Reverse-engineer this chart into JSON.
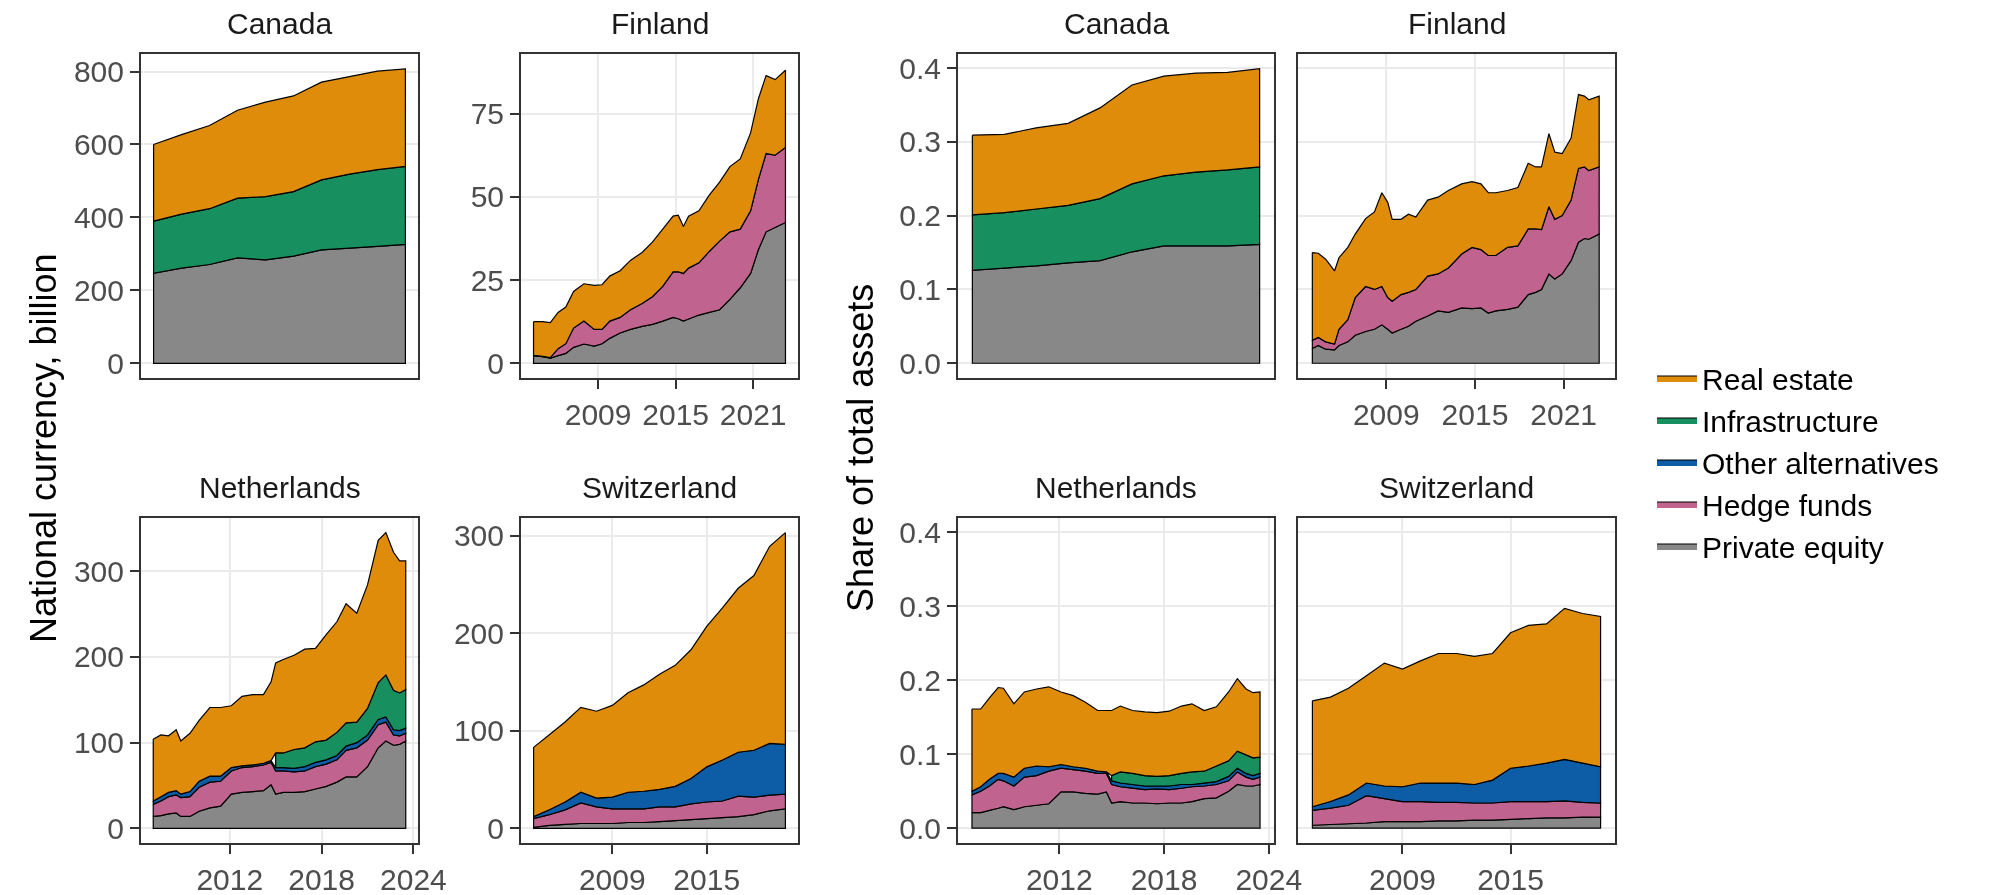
{
  "chart_data": [
    {
      "type": "area",
      "stacked": true,
      "legend": "right",
      "title": "Canada",
      "ylabel": "National currency, billion",
      "categories": [
        null,
        null,
        null,
        null,
        null,
        null,
        null,
        null,
        null,
        null
      ],
      "ylim": [
        -40,
        848
      ],
      "yticks": [
        0,
        200,
        400,
        600,
        800
      ],
      "grid": "y",
      "tick_labels": "y",
      "series": [
        {
          "name": "Private equity",
          "color": "#888888",
          "values": [
            247,
            261,
            271,
            289,
            284,
            294,
            311,
            316,
            321,
            326
          ]
        },
        {
          "name": "Infrastructure",
          "color": "#178f5e",
          "values": [
            143,
            148,
            153,
            164,
            173,
            177,
            192,
            203,
            210,
            214
          ]
        },
        {
          "name": "Real estate",
          "color": "#df8c0a",
          "values": [
            210,
            218,
            228,
            241,
            259,
            262,
            268,
            267,
            270,
            267
          ]
        }
      ]
    },
    {
      "type": "area",
      "stacked": true,
      "legend": "right",
      "title": "Finland",
      "x": [
        2004.0,
        2004.7,
        2005.3,
        2005.9,
        2006.5,
        2007.1,
        2007.9,
        2008.7,
        2009.3,
        2009.9,
        2010.7,
        2011.5,
        2012.4,
        2013.2,
        2014.0,
        2014.8,
        2015.2,
        2015.6,
        2016.0,
        2016.8,
        2017.6,
        2018.4,
        2019.2,
        2020.0,
        2020.8,
        2021.4,
        2022.0,
        2022.7,
        2023.5
      ],
      "xlim": [
        2003.03,
        2024.47
      ],
      "xticks": [
        2009,
        2015,
        2021
      ],
      "ylim": [
        -4.4,
        92.9
      ],
      "yticks": [
        0,
        25,
        50,
        75
      ],
      "grid": true,
      "series": [
        {
          "name": "Private equity",
          "color": "#888888",
          "values": [
            2.3,
            2.0,
            1.6,
            2.3,
            3.0,
            4.8,
            5.8,
            5.2,
            5.9,
            7.5,
            9.1,
            10.2,
            11.1,
            11.7,
            12.7,
            13.8,
            13.4,
            12.7,
            13.3,
            14.5,
            15.3,
            16.1,
            19.2,
            22.7,
            27.0,
            34.1,
            39.5,
            40.8,
            42.3
          ]
        },
        {
          "name": "Hedge funds",
          "color": "#c1638f",
          "values": [
            0.1,
            0.1,
            0.1,
            2.1,
            2.9,
            5.8,
            6.9,
            5.0,
            4.3,
            5.2,
            4.7,
            5.9,
            6.9,
            8.3,
            10.4,
            13.7,
            14.1,
            14.3,
            15.3,
            15.7,
            18.3,
            20.6,
            20.3,
            17.6,
            18.8,
            21.1,
            23.5,
            21.7,
            22.5
          ]
        },
        {
          "name": "Real estate",
          "color": "#df8c0a",
          "values": [
            10.1,
            10.4,
            10.5,
            10.9,
            11.0,
            11.0,
            11.2,
            13.2,
            13.4,
            13.5,
            14.0,
            14.8,
            15.3,
            16.4,
            17.2,
            16.7,
            17.0,
            14.1,
            15.6,
            15.6,
            16.9,
            17.7,
            19.6,
            21.1,
            23.4,
            24.2,
            23.4,
            22.7,
            23.2
          ]
        }
      ]
    },
    {
      "type": "area",
      "stacked": true,
      "title": "Netherlands",
      "legend": "right",
      "x": [
        2007.0,
        2007.5,
        2008.0,
        2008.5,
        2008.8,
        2009.4,
        2010.0,
        2010.7,
        2011.4,
        2012.1,
        2012.8,
        2013.5,
        2014.2,
        2014.7,
        2015.0,
        2015.5,
        2016.2,
        2016.9,
        2017.6,
        2018.3,
        2019.0,
        2019.6,
        2020.3,
        2021.0,
        2021.7,
        2022.2,
        2022.7,
        2023.1,
        2023.5
      ],
      "xlim": [
        2006.2,
        2024.3
      ],
      "xticks": [
        2012,
        2018,
        2024
      ],
      "ylim": [
        -17,
        362
      ],
      "yticks": [
        0,
        100,
        200,
        300
      ],
      "grid": true,
      "series": [
        {
          "name": "Private equity",
          "color": "#888888",
          "values": [
            14,
            15,
            17,
            18,
            14,
            14,
            20,
            24,
            26,
            40,
            42,
            43,
            44,
            51,
            40,
            42,
            42,
            43,
            46,
            49,
            54,
            60,
            60,
            72,
            94,
            102,
            97,
            98,
            102
          ]
        },
        {
          "name": "Hedge funds",
          "color": "#c1638f",
          "values": [
            14,
            17,
            20,
            21,
            22,
            23,
            28,
            30,
            29,
            27,
            29,
            29,
            30,
            26,
            27,
            25,
            24,
            24,
            26,
            26,
            26,
            31,
            34,
            31,
            27,
            22,
            12,
            10,
            9
          ]
        },
        {
          "name": "Other alternatives",
          "color": "#0c5da5",
          "values": [
            4,
            5,
            5,
            5,
            4,
            6,
            7,
            7,
            6,
            4,
            2,
            2,
            2,
            2,
            4,
            4,
            4,
            5,
            5,
            5,
            5,
            5,
            6,
            6,
            6,
            6,
            6,
            6,
            6
          ]
        },
        {
          "name": "Infrastructure",
          "color": "#178f5e",
          "values": [
            null,
            null,
            null,
            null,
            null,
            null,
            null,
            null,
            null,
            null,
            null,
            null,
            null,
            null,
            17,
            17,
            22,
            22,
            24,
            23,
            27,
            27,
            24,
            31,
            43,
            49,
            46,
            44,
            45
          ]
        },
        {
          "name": "Real estate",
          "color": "#df8c0a",
          "values": [
            72,
            72,
            66,
            71,
            62,
            68,
            71,
            80,
            80,
            72,
            81,
            82,
            80,
            92,
            105,
            109,
            110,
            115,
            109,
            123,
            129,
            139,
            127,
            144,
            166,
            166,
            161,
            154,
            150
          ]
        }
      ]
    },
    {
      "type": "area",
      "stacked": true,
      "legend": "right",
      "title": "Switzerland",
      "x": [
        2004,
        2005,
        2006,
        2007,
        2008,
        2009,
        2010,
        2011,
        2012,
        2013,
        2014,
        2015,
        2016,
        2017,
        2018,
        2019,
        2020
      ],
      "xlim": [
        2003.2,
        2020.8
      ],
      "xticks": [
        2009,
        2015
      ],
      "ylim": [
        -15,
        318
      ],
      "yticks": [
        0,
        100,
        200,
        300
      ],
      "grid": true,
      "series": [
        {
          "name": "Private equity",
          "color": "#888888",
          "values": [
            1,
            3,
            4,
            5,
            5,
            5,
            6,
            6,
            7,
            8,
            9,
            10,
            11,
            12,
            14,
            18,
            20
          ]
        },
        {
          "name": "Hedge funds",
          "color": "#c1638f",
          "values": [
            9,
            11,
            15,
            21,
            17,
            15,
            14,
            14,
            15,
            14,
            16,
            17,
            17,
            21,
            18,
            16,
            15
          ]
        },
        {
          "name": "Other alternatives",
          "color": "#0c5da5",
          "values": [
            2,
            5,
            8,
            11,
            9,
            12,
            17,
            18,
            18,
            21,
            26,
            36,
            42,
            45,
            48,
            53,
            51
          ]
        },
        {
          "name": "Real estate",
          "color": "#df8c0a",
          "values": [
            71,
            77,
            82,
            87,
            89,
            94,
            102,
            109,
            118,
            124,
            132,
            144,
            156,
            168,
            179,
            202,
            217
          ]
        }
      ]
    },
    {
      "type": "area",
      "stacked": true,
      "legend": "right",
      "title": "Canada",
      "ylabel": "Share of total assets",
      "categories": [
        null,
        null,
        null,
        null,
        null,
        null,
        null,
        null,
        null,
        null
      ],
      "ylim": [
        -0.02,
        0.419
      ],
      "yticks": [
        {
          "value": 0,
          "label": "0.0"
        },
        {
          "value": 0.1,
          "label": "0.1"
        },
        {
          "value": 0.2,
          "label": "0.2"
        },
        {
          "value": 0.3,
          "label": "0.3"
        },
        {
          "value": 0.4,
          "label": "0.4"
        }
      ],
      "grid": "y",
      "tick_labels": "y",
      "series": [
        {
          "name": "Private equity",
          "color": "#888888",
          "values": [
            0.126,
            0.129,
            0.132,
            0.136,
            0.139,
            0.151,
            0.159,
            0.159,
            0.159,
            0.161
          ]
        },
        {
          "name": "Infrastructure",
          "color": "#178f5e",
          "values": [
            0.075,
            0.075,
            0.077,
            0.078,
            0.084,
            0.092,
            0.095,
            0.1,
            0.103,
            0.105
          ]
        },
        {
          "name": "Real estate",
          "color": "#df8c0a",
          "values": [
            0.108,
            0.106,
            0.11,
            0.111,
            0.123,
            0.134,
            0.135,
            0.134,
            0.132,
            0.133
          ]
        }
      ]
    },
    {
      "type": "area",
      "stacked": true,
      "legend": "right",
      "title": "Finland",
      "x": [
        2004.0,
        2004.4,
        2004.9,
        2005.5,
        2005.8,
        2006.4,
        2006.9,
        2007.6,
        2008.2,
        2008.7,
        2009.1,
        2009.4,
        2010.0,
        2010.5,
        2011.0,
        2011.8,
        2012.5,
        2013.2,
        2014.1,
        2014.8,
        2015.4,
        2015.9,
        2016.4,
        2017.2,
        2017.9,
        2018.6,
        2019.1,
        2019.5,
        2020.0,
        2020.4,
        2020.9,
        2021.5,
        2022.0,
        2022.4,
        2022.7,
        2023.4
      ],
      "xlim": [
        2003.03,
        2024.47
      ],
      "xticks": [
        2009,
        2015,
        2021
      ],
      "ylim": [
        -0.02,
        0.419
      ],
      "yticks": [
        {
          "value": 0,
          "label": "0.0"
        },
        {
          "value": 0.1,
          "label": "0.1"
        },
        {
          "value": 0.2,
          "label": "0.2"
        },
        {
          "value": 0.3,
          "label": "0.3"
        },
        {
          "value": 0.4,
          "label": "0.4"
        }
      ],
      "grid": true,
      "tick_labels": "x",
      "series": [
        {
          "name": "Private equity",
          "color": "#888888",
          "values": [
            0.02,
            0.024,
            0.019,
            0.018,
            0.024,
            0.029,
            0.038,
            0.043,
            0.046,
            0.052,
            0.046,
            0.041,
            0.046,
            0.05,
            0.057,
            0.064,
            0.071,
            0.069,
            0.075,
            0.074,
            0.075,
            0.068,
            0.071,
            0.073,
            0.076,
            0.093,
            0.096,
            0.1,
            0.121,
            0.114,
            0.121,
            0.139,
            0.164,
            0.169,
            0.168,
            0.175
          ]
        },
        {
          "name": "Hedge funds",
          "color": "#c1638f",
          "values": [
            0.011,
            0.011,
            0.01,
            0.008,
            0.022,
            0.03,
            0.051,
            0.061,
            0.054,
            0.052,
            0.043,
            0.043,
            0.047,
            0.046,
            0.043,
            0.054,
            0.05,
            0.06,
            0.073,
            0.083,
            0.079,
            0.078,
            0.075,
            0.084,
            0.083,
            0.089,
            0.086,
            0.081,
            0.091,
            0.081,
            0.079,
            0.082,
            0.1,
            0.097,
            0.093,
            0.091
          ]
        },
        {
          "name": "Real estate",
          "color": "#df8c0a",
          "values": [
            0.119,
            0.114,
            0.112,
            0.099,
            0.097,
            0.098,
            0.086,
            0.092,
            0.105,
            0.127,
            0.129,
            0.111,
            0.102,
            0.106,
            0.098,
            0.103,
            0.104,
            0.105,
            0.095,
            0.089,
            0.089,
            0.085,
            0.085,
            0.077,
            0.079,
            0.089,
            0.084,
            0.085,
            0.099,
            0.091,
            0.084,
            0.084,
            0.1,
            0.096,
            0.096,
            0.096
          ]
        }
      ]
    },
    {
      "type": "area",
      "stacked": true,
      "legend": "right",
      "title": "Netherlands",
      "x": [
        2007.0,
        2007.5,
        2008.0,
        2008.5,
        2008.8,
        2009.4,
        2010.0,
        2010.7,
        2011.4,
        2012.1,
        2012.8,
        2013.5,
        2014.2,
        2014.7,
        2015.0,
        2015.5,
        2016.2,
        2016.9,
        2017.6,
        2018.3,
        2019.0,
        2019.6,
        2020.3,
        2021.0,
        2021.7,
        2022.2,
        2022.7,
        2023.1,
        2023.5
      ],
      "xlim": [
        2006.2,
        2024.3
      ],
      "xticks": [
        2012,
        2018,
        2024
      ],
      "ylim": [
        -0.02,
        0.419
      ],
      "yticks": [
        {
          "value": 0,
          "label": "0.0"
        },
        {
          "value": 0.1,
          "label": "0.1"
        },
        {
          "value": 0.2,
          "label": "0.2"
        },
        {
          "value": 0.3,
          "label": "0.3"
        },
        {
          "value": 0.4,
          "label": "0.4"
        }
      ],
      "grid": true,
      "series": [
        {
          "name": "Private equity",
          "color": "#888888",
          "values": [
            0.021,
            0.021,
            0.024,
            0.027,
            0.029,
            0.025,
            0.029,
            0.031,
            0.033,
            0.049,
            0.049,
            0.047,
            0.046,
            0.049,
            0.034,
            0.036,
            0.034,
            0.034,
            0.033,
            0.034,
            0.034,
            0.036,
            0.04,
            0.041,
            0.05,
            0.059,
            0.057,
            0.057,
            0.059
          ]
        },
        {
          "name": "Hedge funds",
          "color": "#c1638f",
          "values": [
            0.024,
            0.029,
            0.033,
            0.039,
            0.035,
            0.032,
            0.04,
            0.04,
            0.044,
            0.032,
            0.03,
            0.03,
            0.028,
            0.025,
            0.025,
            0.02,
            0.02,
            0.018,
            0.02,
            0.018,
            0.02,
            0.02,
            0.017,
            0.018,
            0.014,
            0.017,
            0.012,
            0.009,
            0.01
          ]
        },
        {
          "name": "Other alternatives",
          "color": "#0c5da5",
          "values": [
            0.005,
            0.006,
            0.009,
            0.008,
            0.01,
            0.012,
            0.012,
            0.013,
            0.006,
            0.005,
            0.004,
            0.004,
            0.003,
            0.002,
            0.005,
            0.005,
            0.005,
            0.005,
            0.004,
            0.005,
            0.005,
            0.003,
            0.004,
            0.004,
            0.006,
            0.005,
            0.005,
            0.005,
            0.005
          ]
        },
        {
          "name": "Infrastructure",
          "color": "#178f5e",
          "values": [
            null,
            null,
            null,
            null,
            null,
            null,
            null,
            null,
            null,
            null,
            null,
            null,
            null,
            null,
            0.007,
            0.015,
            0.015,
            0.014,
            0.013,
            0.014,
            0.015,
            0.017,
            0.016,
            0.021,
            0.021,
            0.023,
            0.025,
            0.024,
            0.022
          ]
        },
        {
          "name": "Real estate",
          "color": "#df8c0a",
          "values": [
            0.111,
            0.105,
            0.11,
            0.116,
            0.115,
            0.099,
            0.103,
            0.104,
            0.108,
            0.098,
            0.096,
            0.089,
            0.082,
            0.083,
            0.088,
            0.089,
            0.085,
            0.086,
            0.086,
            0.087,
            0.091,
            0.092,
            0.082,
            0.08,
            0.093,
            0.098,
            0.089,
            0.088,
            0.088
          ]
        }
      ]
    },
    {
      "type": "area",
      "stacked": true,
      "legend": "right",
      "title": "Switzerland",
      "x": [
        2004,
        2005,
        2006,
        2007,
        2008,
        2009,
        2010,
        2011,
        2012,
        2013,
        2014,
        2015,
        2016,
        2017,
        2018,
        2019,
        2020
      ],
      "xlim": [
        2003.2,
        2020.8
      ],
      "xticks": [
        2009,
        2015
      ],
      "ylim": [
        -0.02,
        0.419
      ],
      "yticks": [
        {
          "value": 0,
          "label": "0.0"
        },
        {
          "value": 0.1,
          "label": "0.1"
        },
        {
          "value": 0.2,
          "label": "0.2"
        },
        {
          "value": 0.3,
          "label": "0.3"
        },
        {
          "value": 0.4,
          "label": "0.4"
        }
      ],
      "grid": true,
      "tick_labels": "x",
      "series": [
        {
          "name": "Private equity",
          "color": "#888888",
          "values": [
            0.004,
            0.005,
            0.006,
            0.007,
            0.009,
            0.009,
            0.009,
            0.01,
            0.01,
            0.011,
            0.011,
            0.012,
            0.013,
            0.014,
            0.014,
            0.015,
            0.015
          ]
        },
        {
          "name": "Hedge funds",
          "color": "#c1638f",
          "values": [
            0.02,
            0.022,
            0.025,
            0.037,
            0.031,
            0.027,
            0.027,
            0.025,
            0.025,
            0.023,
            0.023,
            0.024,
            0.023,
            0.022,
            0.023,
            0.02,
            0.019
          ]
        },
        {
          "name": "Other alternatives",
          "color": "#0c5da5",
          "values": [
            0.005,
            0.009,
            0.014,
            0.017,
            0.017,
            0.02,
            0.025,
            0.026,
            0.026,
            0.025,
            0.031,
            0.045,
            0.048,
            0.052,
            0.056,
            0.053,
            0.049
          ]
        },
        {
          "name": "Real estate",
          "color": "#df8c0a",
          "values": [
            0.143,
            0.141,
            0.144,
            0.145,
            0.166,
            0.159,
            0.165,
            0.175,
            0.175,
            0.173,
            0.171,
            0.183,
            0.19,
            0.188,
            0.204,
            0.202,
            0.203
          ]
        }
      ]
    }
  ]
}
